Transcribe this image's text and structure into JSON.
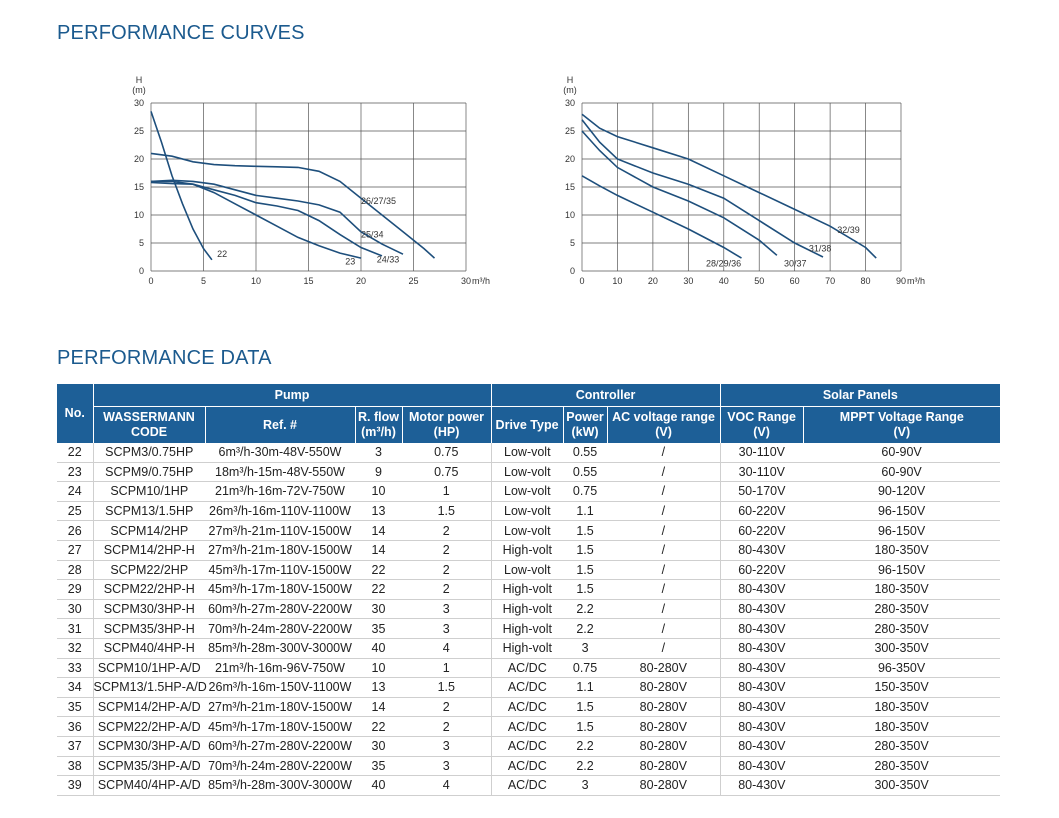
{
  "curves_title": "PERFORMANCE CURVES",
  "data_title": "PERFORMANCE DATA",
  "chart_data": [
    {
      "type": "line",
      "ylabel": "H",
      "yunit": "(m)",
      "xlabel": "m³/h",
      "xlim": [
        0,
        30
      ],
      "ylim": [
        0,
        30
      ],
      "xticks": [
        0,
        5,
        10,
        15,
        20,
        25,
        30
      ],
      "yticks": [
        0,
        5,
        10,
        15,
        20,
        25,
        30
      ],
      "grid": true,
      "series": [
        {
          "name": "22",
          "x": [
            0,
            1,
            2,
            3,
            4,
            5,
            5.8
          ],
          "y": [
            28.5,
            23,
            17,
            12,
            7.5,
            4,
            2
          ],
          "label_at": [
            6.3,
            2.5
          ]
        },
        {
          "name": "23",
          "x": [
            0,
            2,
            4,
            6,
            8,
            10,
            12,
            14,
            16,
            18,
            20
          ],
          "y": [
            16,
            16,
            15.5,
            14,
            12,
            10,
            8,
            6,
            4.5,
            3.2,
            2.3
          ],
          "label_at": [
            18.5,
            1.2
          ]
        },
        {
          "name": "24/33",
          "x": [
            0,
            2,
            4,
            6,
            8,
            10,
            12,
            14,
            16,
            18,
            20,
            22
          ],
          "y": [
            15.8,
            15.6,
            15.5,
            14.5,
            13.5,
            12.2,
            11.6,
            10.8,
            9,
            6.5,
            4.2,
            2.7
          ],
          "label_at": [
            21.5,
            1.5
          ]
        },
        {
          "name": "25/34",
          "x": [
            0,
            2,
            4,
            6,
            8,
            10,
            12,
            14,
            16,
            18,
            20,
            22,
            24
          ],
          "y": [
            16,
            16.2,
            16,
            15.5,
            14.5,
            13.5,
            13,
            12.5,
            11.8,
            10.5,
            7,
            4.8,
            3
          ],
          "label_at": [
            20,
            6
          ]
        },
        {
          "name": "26/27/35",
          "x": [
            0,
            2,
            4,
            6,
            8,
            10,
            12,
            14,
            16,
            18,
            20,
            22,
            24,
            26,
            27
          ],
          "y": [
            21,
            20.5,
            19.5,
            19,
            18.8,
            18.7,
            18.6,
            18.5,
            17.8,
            16,
            13,
            10,
            7,
            4,
            2.3
          ],
          "label_at": [
            20,
            12
          ]
        }
      ]
    },
    {
      "type": "line",
      "ylabel": "H",
      "yunit": "(m)",
      "xlabel": "m³/h",
      "xlim": [
        0,
        90
      ],
      "ylim": [
        0,
        30
      ],
      "xticks": [
        0,
        10,
        20,
        30,
        40,
        50,
        60,
        70,
        80,
        90
      ],
      "yticks": [
        0,
        5,
        10,
        15,
        20,
        25,
        30
      ],
      "grid": true,
      "series": [
        {
          "name": "28/29/36",
          "x": [
            0,
            5,
            10,
            20,
            30,
            40,
            45
          ],
          "y": [
            17,
            15.2,
            13.5,
            10.5,
            7.5,
            4.2,
            2.3
          ],
          "label_at": [
            35,
            0.8
          ]
        },
        {
          "name": "30/37",
          "x": [
            0,
            5,
            10,
            20,
            30,
            40,
            50,
            55
          ],
          "y": [
            25,
            21.5,
            18.5,
            15,
            12.5,
            9.5,
            5.5,
            2.8
          ],
          "label_at": [
            57,
            0.8
          ]
        },
        {
          "name": "31/38",
          "x": [
            0,
            5,
            10,
            20,
            30,
            40,
            50,
            60,
            68
          ],
          "y": [
            27,
            23,
            20,
            17.5,
            15.5,
            13,
            9,
            5,
            2.5
          ],
          "label_at": [
            64,
            3.5
          ]
        },
        {
          "name": "32/39",
          "x": [
            0,
            5,
            10,
            20,
            30,
            40,
            50,
            60,
            70,
            80,
            83
          ],
          "y": [
            28,
            25.5,
            24,
            22,
            20,
            17,
            14,
            11,
            8,
            4.2,
            2.3
          ],
          "label_at": [
            72,
            6.8
          ]
        }
      ]
    }
  ],
  "table": {
    "groups": {
      "pump": "Pump",
      "controller": "Controller",
      "solar": "Solar Panels"
    },
    "headers": {
      "no": "No.",
      "code": "WASSERMANN CODE",
      "ref": "Ref. #",
      "flow_1": "R. flow",
      "flow_2": "(m³/h)",
      "motor_1": "Motor power",
      "motor_2": "(HP)",
      "drive": "Drive Type",
      "power_1": "Power",
      "power_2": "(kW)",
      "ac_1": "AC voltage range",
      "ac_2": "(V)",
      "voc_1": "VOC Range",
      "voc_2": "(V)",
      "mppt_1": "MPPT Voltage Range",
      "mppt_2": "(V)"
    },
    "rows": [
      {
        "no": "22",
        "code": "SCPM3/0.75HP",
        "ref": "6m³/h-30m-48V-550W",
        "flow": "3",
        "motor": "0.75",
        "drive": "Low-volt",
        "power": "0.55",
        "ac": "/",
        "voc": "30-110V",
        "mppt": "60-90V"
      },
      {
        "no": "23",
        "code": "SCPM9/0.75HP",
        "ref": "18m³/h-15m-48V-550W",
        "flow": "9",
        "motor": "0.75",
        "drive": "Low-volt",
        "power": "0.55",
        "ac": "/",
        "voc": "30-110V",
        "mppt": "60-90V"
      },
      {
        "no": "24",
        "code": "SCPM10/1HP",
        "ref": "21m³/h-16m-72V-750W",
        "flow": "10",
        "motor": "1",
        "drive": "Low-volt",
        "power": "0.75",
        "ac": "/",
        "voc": "50-170V",
        "mppt": "90-120V"
      },
      {
        "no": "25",
        "code": "SCPM13/1.5HP",
        "ref": "26m³/h-16m-110V-1100W",
        "flow": "13",
        "motor": "1.5",
        "drive": "Low-volt",
        "power": "1.1",
        "ac": "/",
        "voc": "60-220V",
        "mppt": "96-150V"
      },
      {
        "no": "26",
        "code": "SCPM14/2HP",
        "ref": "27m³/h-21m-110V-1500W",
        "flow": "14",
        "motor": "2",
        "drive": "Low-volt",
        "power": "1.5",
        "ac": "/",
        "voc": "60-220V",
        "mppt": "96-150V"
      },
      {
        "no": "27",
        "code": "SCPM14/2HP-H",
        "ref": "27m³/h-21m-180V-1500W",
        "flow": "14",
        "motor": "2",
        "drive": "High-volt",
        "power": "1.5",
        "ac": "/",
        "voc": "80-430V",
        "mppt": "180-350V"
      },
      {
        "no": "28",
        "code": "SCPM22/2HP",
        "ref": "45m³/h-17m-110V-1500W",
        "flow": "22",
        "motor": "2",
        "drive": "Low-volt",
        "power": "1.5",
        "ac": "/",
        "voc": "60-220V",
        "mppt": "96-150V"
      },
      {
        "no": "29",
        "code": "SCPM22/2HP-H",
        "ref": "45m³/h-17m-180V-1500W",
        "flow": "22",
        "motor": "2",
        "drive": "High-volt",
        "power": "1.5",
        "ac": "/",
        "voc": "80-430V",
        "mppt": "180-350V"
      },
      {
        "no": "30",
        "code": "SCPM30/3HP-H",
        "ref": "60m³/h-27m-280V-2200W",
        "flow": "30",
        "motor": "3",
        "drive": "High-volt",
        "power": "2.2",
        "ac": "/",
        "voc": "80-430V",
        "mppt": "280-350V"
      },
      {
        "no": "31",
        "code": "SCPM35/3HP-H",
        "ref": "70m³/h-24m-280V-2200W",
        "flow": "35",
        "motor": "3",
        "drive": "High-volt",
        "power": "2.2",
        "ac": "/",
        "voc": "80-430V",
        "mppt": "280-350V"
      },
      {
        "no": "32",
        "code": "SCPM40/4HP-H",
        "ref": "85m³/h-28m-300V-3000W",
        "flow": "40",
        "motor": "4",
        "drive": "High-volt",
        "power": "3",
        "ac": "/",
        "voc": "80-430V",
        "mppt": "300-350V"
      },
      {
        "no": "33",
        "code": "SCPM10/1HP-A/D",
        "ref": "21m³/h-16m-96V-750W",
        "flow": "10",
        "motor": "1",
        "drive": "AC/DC",
        "power": "0.75",
        "ac": "80-280V",
        "voc": "80-430V",
        "mppt": "96-350V"
      },
      {
        "no": "34",
        "code": "SCPM13/1.5HP-A/D",
        "ref": "26m³/h-16m-150V-1100W",
        "flow": "13",
        "motor": "1.5",
        "drive": "AC/DC",
        "power": "1.1",
        "ac": "80-280V",
        "voc": "80-430V",
        "mppt": "150-350V"
      },
      {
        "no": "35",
        "code": "SCPM14/2HP-A/D",
        "ref": "27m³/h-21m-180V-1500W",
        "flow": "14",
        "motor": "2",
        "drive": "AC/DC",
        "power": "1.5",
        "ac": "80-280V",
        "voc": "80-430V",
        "mppt": "180-350V"
      },
      {
        "no": "36",
        "code": "SCPM22/2HP-A/D",
        "ref": "45m³/h-17m-180V-1500W",
        "flow": "22",
        "motor": "2",
        "drive": "AC/DC",
        "power": "1.5",
        "ac": "80-280V",
        "voc": "80-430V",
        "mppt": "180-350V"
      },
      {
        "no": "37",
        "code": "SCPM30/3HP-A/D",
        "ref": "60m³/h-27m-280V-2200W",
        "flow": "30",
        "motor": "3",
        "drive": "AC/DC",
        "power": "2.2",
        "ac": "80-280V",
        "voc": "80-430V",
        "mppt": "280-350V"
      },
      {
        "no": "38",
        "code": "SCPM35/3HP-A/D",
        "ref": "70m³/h-24m-280V-2200W",
        "flow": "35",
        "motor": "3",
        "drive": "AC/DC",
        "power": "2.2",
        "ac": "80-280V",
        "voc": "80-430V",
        "mppt": "280-350V"
      },
      {
        "no": "39",
        "code": "SCPM40/4HP-A/D",
        "ref": "85m³/h-28m-300V-3000W",
        "flow": "40",
        "motor": "4",
        "drive": "AC/DC",
        "power": "3",
        "ac": "80-280V",
        "voc": "80-430V",
        "mppt": "300-350V"
      }
    ]
  }
}
